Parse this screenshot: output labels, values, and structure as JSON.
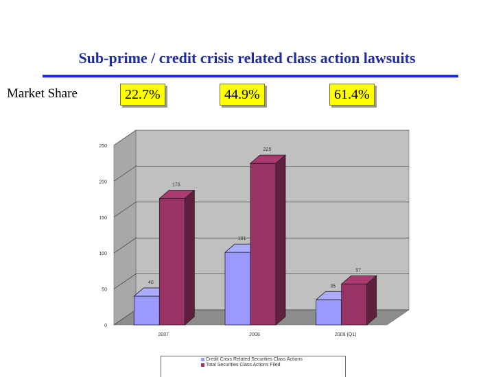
{
  "slide": {
    "title": "Sub-prime / credit crisis related class action lawsuits",
    "share_label": "Market Share",
    "shares": [
      "22.7%",
      "44.9%",
      "61.4%"
    ]
  },
  "colors": {
    "title": "#1f2d9e",
    "rule": "#1a2fd4",
    "share_box": "#ffff00",
    "series_credit": "#9999ff",
    "series_total": "#993366",
    "plot_back": "#c0c0c0"
  },
  "chart_data": {
    "type": "bar",
    "categories": [
      "2007",
      "2008",
      "2009 (Q1)"
    ],
    "series": [
      {
        "name": "Credit Crisis Related Securities Class Actions",
        "values": [
          40,
          101,
          35
        ]
      },
      {
        "name": "Total Securities Class Actions Filed",
        "values": [
          176,
          225,
          57
        ]
      }
    ],
    "data_labels": [
      [
        "40",
        "101",
        "35"
      ],
      [
        "176",
        "225",
        "57"
      ]
    ],
    "y_ticks": [
      0,
      50,
      100,
      150,
      200,
      250
    ],
    "ylim": [
      0,
      250
    ],
    "grid": true,
    "style": "3d",
    "legend_position": "bottom"
  }
}
